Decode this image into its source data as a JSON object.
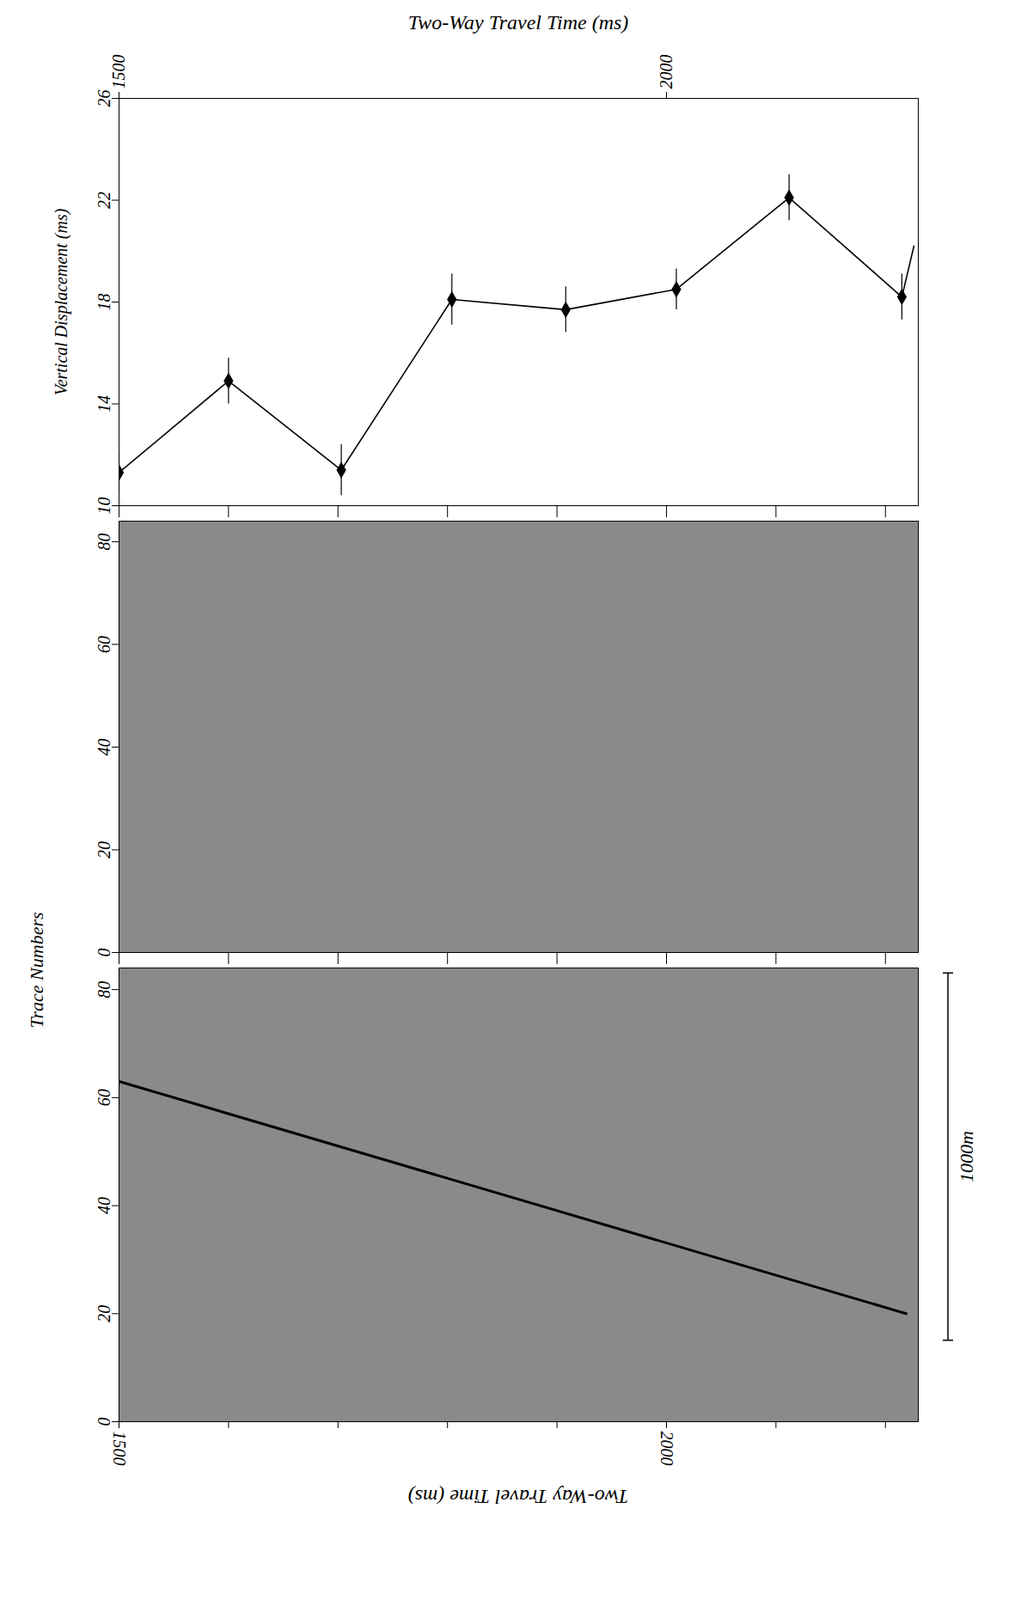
{
  "chart_data": [
    {
      "type": "line",
      "xlabel": "Two-Way Travel Time (ms)",
      "ylabel": "Vertical Displacement (ms)",
      "x": [
        1500,
        1600,
        1703,
        1804,
        1908,
        2009,
        2112,
        2215,
        2226
      ],
      "values": [
        11.3,
        14.9,
        11.4,
        18.1,
        17.7,
        18.5,
        22.1,
        18.2,
        20.2
      ],
      "errors": [
        0.8,
        0.9,
        1.0,
        1.0,
        0.9,
        0.8,
        0.9,
        0.9,
        null
      ],
      "color": "#000000",
      "marker": "diamond",
      "xlim": [
        1500,
        2230
      ],
      "xticks": [
        1500,
        2000
      ],
      "minor_xticks": [
        1500,
        1600,
        1700,
        1800,
        1900,
        2000,
        2100,
        2200
      ],
      "ylim": [
        10,
        26
      ],
      "yticks": [
        10,
        14,
        18,
        22,
        26
      ]
    },
    {
      "type": "image",
      "ylabel": "Trace Numbers",
      "xlim": [
        1500,
        2230
      ],
      "ylim": [
        0,
        84
      ],
      "yticks": [
        0,
        20,
        40,
        60,
        80
      ],
      "minor_xticks": [
        1500,
        1600,
        1700,
        1800,
        1900,
        2000,
        2100,
        2200
      ]
    },
    {
      "type": "image",
      "xlabel": "Two-Way Travel Time (ms)",
      "xlim": [
        1500,
        2230
      ],
      "ylim": [
        0,
        84
      ],
      "yticks": [
        0,
        20,
        40,
        60,
        80
      ],
      "xticks": [
        1500,
        2000
      ],
      "minor_xticks": [
        1500,
        1600,
        1700,
        1800,
        1900,
        2000,
        2100,
        2200
      ],
      "fault": {
        "x": [
          1500,
          2219
        ],
        "y": [
          63,
          20
        ]
      },
      "scale_bar": {
        "label": "1000m",
        "y": [
          15,
          83
        ]
      }
    }
  ]
}
